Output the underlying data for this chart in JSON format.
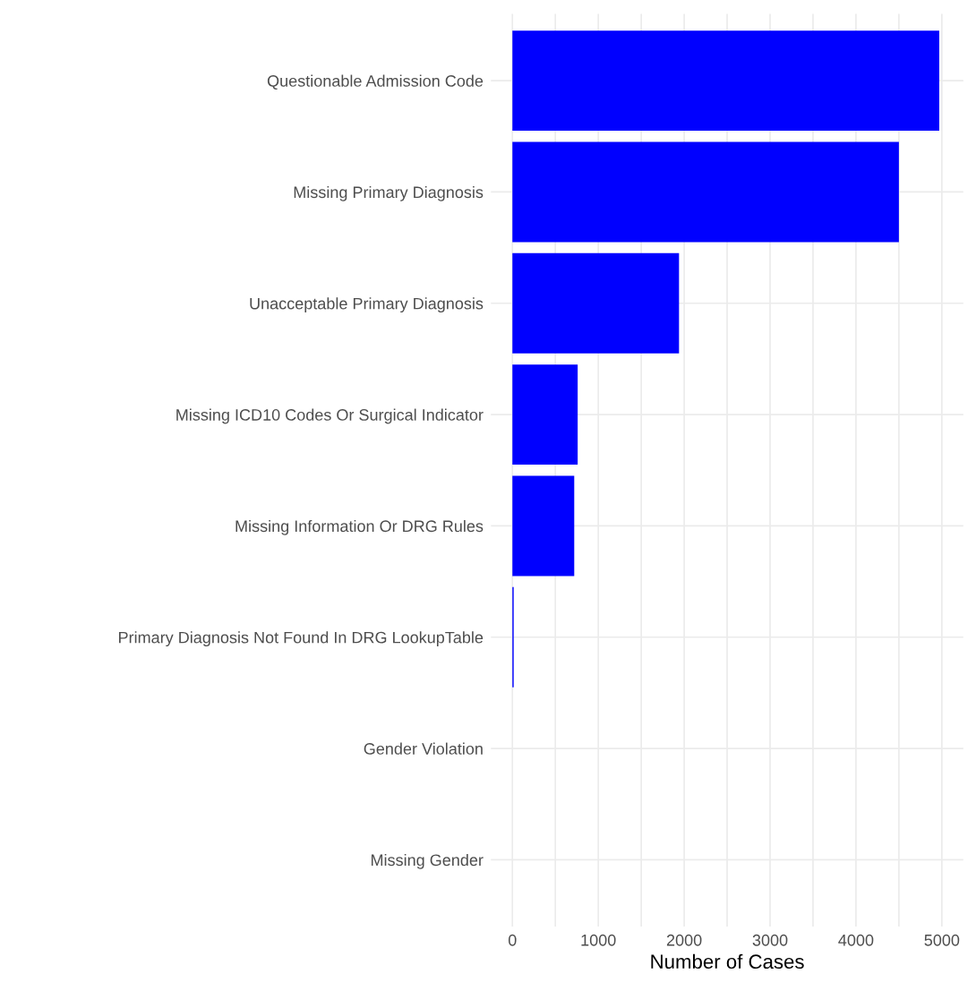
{
  "chart_data": {
    "type": "bar",
    "orientation": "horizontal",
    "xlabel": "Number of Cases",
    "categories": [
      "Questionable Admission Code",
      "Missing Primary Diagnosis",
      "Unacceptable Primary Diagnosis",
      "Missing ICD10 Codes Or Surgical Indicator",
      "Missing Information Or DRG Rules",
      "Primary Diagnosis Not Found In DRG LookupTable",
      "Gender Violation",
      "Missing Gender"
    ],
    "values": [
      4970,
      4500,
      1940,
      760,
      720,
      15,
      0,
      0
    ],
    "color": "#0000ff",
    "xlim": [
      -250,
      5250
    ],
    "xticks": [
      0,
      {
        "value": 500,
        "label": null
      },
      1000,
      {
        "value": 1500,
        "label": null
      },
      2000,
      {
        "value": 2500,
        "label": null
      },
      3000,
      {
        "value": 3500,
        "label": null
      },
      4000,
      {
        "value": 4500,
        "label": null
      },
      5000
    ],
    "grid": true
  }
}
